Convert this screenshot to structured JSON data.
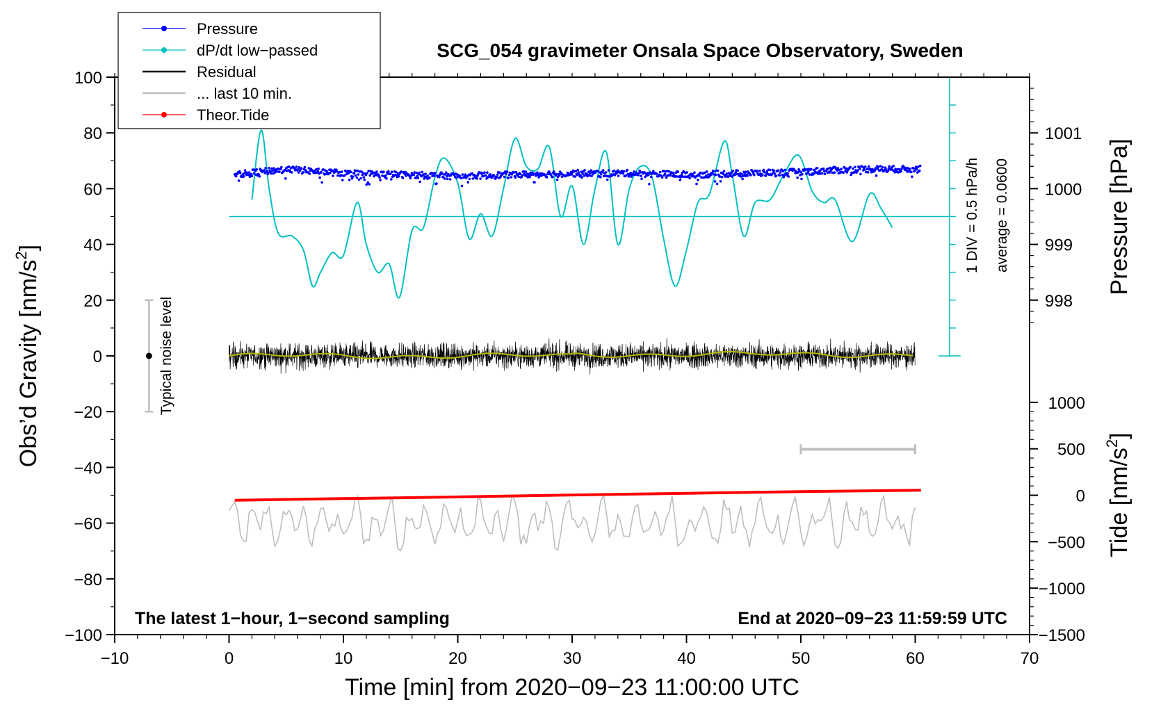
{
  "chart_data": {
    "type": "line",
    "title": "SCG_054 gravimeter Onsala Space Observatory, Sweden",
    "xlabel": "Time [min] from 2020−09−23 11:00:00 UTC",
    "ylabel_left": "Obs’d Gravity [nm/s",
    "ylabel_left_sup": "2",
    "ylabel_left_end": "]",
    "ylabel_right_pressure": "Pressure [hPa]",
    "ylabel_right_tide": "Tide [nm/s",
    "ylabel_right_tide_sup": "2",
    "ylabel_right_tide_end": "]",
    "xlim": [
      -10,
      70
    ],
    "ylim": [
      -100,
      100
    ],
    "x_ticks": [
      {
        "value": -10,
        "label": "−10"
      },
      {
        "value": 0,
        "label": "0"
      },
      {
        "value": 10,
        "label": "10"
      },
      {
        "value": 20,
        "label": "20"
      },
      {
        "value": 30,
        "label": "30"
      },
      {
        "value": 40,
        "label": "40"
      },
      {
        "value": 50,
        "label": "50"
      },
      {
        "value": 60,
        "label": "60"
      },
      {
        "value": 70,
        "label": "70"
      }
    ],
    "y_ticks": [
      {
        "value": 100,
        "label": "100"
      },
      {
        "value": 80,
        "label": "80"
      },
      {
        "value": 60,
        "label": "60"
      },
      {
        "value": 40,
        "label": "40"
      },
      {
        "value": 20,
        "label": "20"
      },
      {
        "value": 0,
        "label": "0"
      },
      {
        "value": -20,
        "label": "−20"
      },
      {
        "value": -40,
        "label": "−40"
      },
      {
        "value": -60,
        "label": "−60"
      },
      {
        "value": -80,
        "label": "−80"
      },
      {
        "value": -100,
        "label": "−100"
      }
    ],
    "pressure_axis": {
      "comment": "pressure hPa mapped onto gravity scale: 0.05 hPa per nm/s2, 1000 hPa at 60",
      "ticks": [
        {
          "value": 1001,
          "label": "1001"
        },
        {
          "value": 1000,
          "label": "1000"
        },
        {
          "value": 999,
          "label": "999"
        },
        {
          "value": 998,
          "label": "998"
        }
      ]
    },
    "tide_axis": {
      "comment": "tide nm/s2 mapped onto gravity scale: 0 at -50, 500 per 16.667",
      "ticks": [
        {
          "value": 1000,
          "label": "1000"
        },
        {
          "value": 500,
          "label": "500"
        },
        {
          "value": 0,
          "label": "0"
        },
        {
          "value": -500,
          "label": "−500"
        },
        {
          "value": -1000,
          "label": "−1000"
        },
        {
          "value": -1500,
          "label": "−1500"
        }
      ]
    },
    "legend": [
      {
        "label": "Pressure",
        "color": "#0000ff",
        "marker": true
      },
      {
        "label": "dP/dt low−passed",
        "color": "#00c0c0",
        "marker": true
      },
      {
        "label": "Residual",
        "color": "#000000",
        "marker": false
      },
      {
        "label": "... last 10 min.",
        "color": "#bebebe",
        "marker": false
      },
      {
        "label": "Theor.Tide",
        "color": "#ff0000",
        "marker": true
      }
    ],
    "series": [
      {
        "name": "Pressure",
        "color": "#0000ff",
        "x": [
          0.5,
          5,
          10,
          15,
          20,
          25,
          30,
          35,
          40,
          45,
          50,
          55,
          60.5
        ],
        "values": [
          65,
          67,
          65.5,
          65,
          64.5,
          65,
          65.5,
          65.5,
          65,
          65.5,
          66,
          67,
          67
        ]
      },
      {
        "name": "dP/dt low−passed",
        "color": "#00c0c0",
        "x": [
          2,
          2.8,
          3.5,
          4.3,
          5.5,
          6.5,
          7.3,
          8,
          9,
          10,
          11.2,
          12,
          13,
          14,
          14.9,
          16,
          17,
          18,
          18.8,
          20,
          21,
          22,
          23,
          24,
          25,
          26,
          27,
          28,
          29,
          30,
          31,
          32,
          33,
          34,
          35,
          36,
          37,
          38,
          39,
          40,
          41,
          42,
          43.3,
          44,
          45,
          46,
          47.3,
          48.5,
          49.8,
          51,
          52,
          53,
          54.5,
          56,
          57,
          58
        ],
        "values": [
          56,
          81,
          60,
          44,
          43,
          38,
          25,
          30,
          37,
          36,
          55,
          40,
          30,
          33,
          21,
          45,
          46,
          64,
          71,
          62,
          42,
          51,
          43,
          60,
          78,
          68,
          67,
          75,
          50,
          61,
          40,
          60,
          73,
          40,
          60,
          68,
          64,
          42,
          25,
          38,
          55,
          58,
          77,
          65,
          43,
          55,
          56,
          65,
          72,
          59,
          55,
          56,
          41,
          58,
          53,
          46
        ]
      },
      {
        "name": "Residual",
        "color": "#000000",
        "x": [
          0,
          60
        ],
        "values": [
          0,
          0
        ]
      },
      {
        "name": "Theor.Tide",
        "color": "#ff0000",
        "x": [
          0.5,
          10,
          20,
          30,
          40,
          50,
          60.5
        ],
        "values": [
          -51.8,
          -51.2,
          -50.6,
          -49.9,
          -49.3,
          -48.7,
          -48.2
        ]
      },
      {
        "name": "... last 10 min.",
        "color": "#bebebe",
        "x": [
          0,
          60
        ],
        "values": [
          -60,
          -60
        ]
      }
    ],
    "baseline_line": {
      "value": 50,
      "x_start": 0,
      "x_end": 63
    },
    "pressure_rate_scale": {
      "x": 63,
      "y_bottom": 0,
      "y_top": 100,
      "label": "1 DIV = 0.5 hPa/h",
      "average": "average = 0.0600"
    },
    "noise_level": {
      "x": -7,
      "center": 0,
      "low": -20,
      "high": 20,
      "label": "Typical noise level"
    },
    "last10_bar": {
      "x_start": 50,
      "x_end": 60,
      "y": -33.5
    },
    "footer_left": "The latest 1−hour, 1−second sampling",
    "footer_right": "End at 2020−09−23 11:59:59 UTC"
  }
}
